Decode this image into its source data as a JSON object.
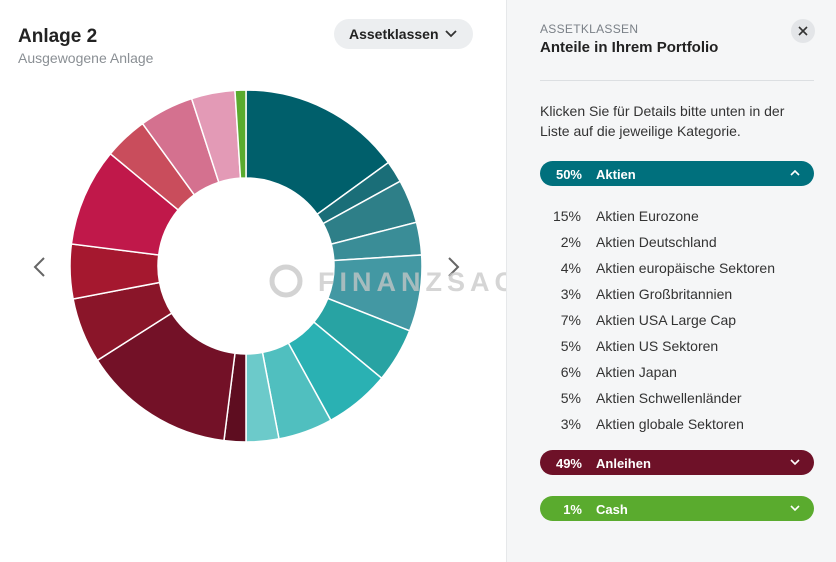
{
  "header": {
    "title": "Anlage 2",
    "subtitle": "Ausgewogene Anlage"
  },
  "dropdown": {
    "label": "Assetklassen"
  },
  "watermark": "FINANZSACHE",
  "chart_data": {
    "type": "pie",
    "donut": true,
    "values": [
      15,
      2,
      4,
      3,
      7,
      5,
      6,
      5,
      3,
      2,
      14,
      6,
      5,
      9,
      4,
      5,
      4,
      1
    ],
    "colors": [
      "#005f6b",
      "#1a6e78",
      "#2e7f88",
      "#3a8d97",
      "#4398a3",
      "#28a3a3",
      "#2ab1b3",
      "#50bfbf",
      "#6ccaca",
      "#5e0d20",
      "#731127",
      "#8a1529",
      "#a5182f",
      "#c0184a",
      "#c94d5c",
      "#d4718f",
      "#e39ab6",
      "#5aab2e"
    ]
  },
  "panel": {
    "eyebrow": "ASSETKLASSEN",
    "title": "Anteile in Ihrem Portfolio",
    "instructions": "Klicken Sie für Details bitte unten in der Liste auf die jeweilige Kategorie.",
    "groups": [
      {
        "share": "50%",
        "name": "Aktien",
        "color": "#00707d",
        "expanded": true,
        "items": [
          {
            "share": "15%",
            "name": "Aktien Eurozone"
          },
          {
            "share": "2%",
            "name": "Aktien Deutschland"
          },
          {
            "share": "4%",
            "name": "Aktien europäische Sektoren"
          },
          {
            "share": "3%",
            "name": "Aktien Großbritannien"
          },
          {
            "share": "7%",
            "name": "Aktien USA Large Cap"
          },
          {
            "share": "5%",
            "name": "Aktien US Sektoren"
          },
          {
            "share": "6%",
            "name": "Aktien Japan"
          },
          {
            "share": "5%",
            "name": "Aktien Schwellenländer"
          },
          {
            "share": "3%",
            "name": "Aktien globale Sektoren"
          }
        ]
      },
      {
        "share": "49%",
        "name": "Anleihen",
        "color": "#6e1128",
        "expanded": false,
        "items": []
      },
      {
        "share": "1%",
        "name": "Cash",
        "color": "#5aab2e",
        "expanded": false,
        "items": []
      }
    ]
  }
}
